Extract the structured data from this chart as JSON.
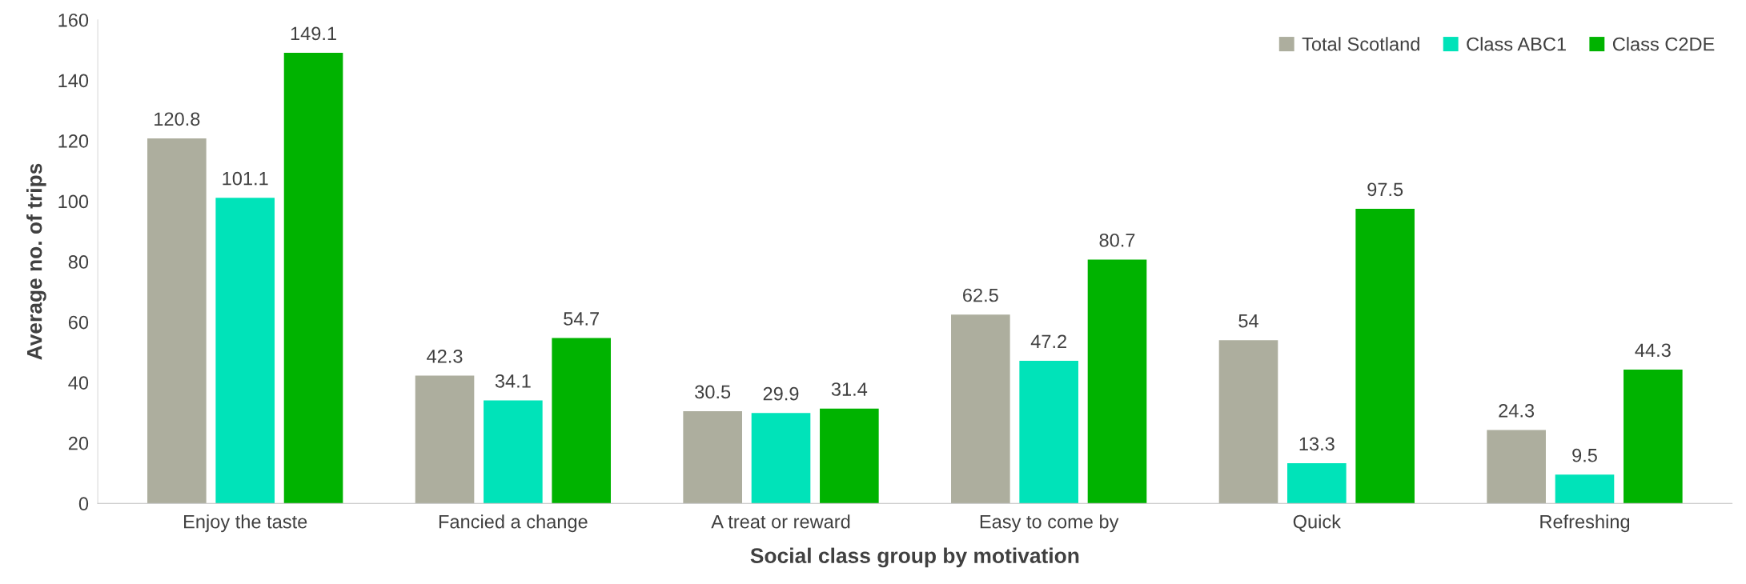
{
  "chart_data": {
    "type": "bar",
    "xlabel": "Social class group by motivation",
    "ylabel": "Average no. of trips",
    "categories": [
      "Enjoy the taste",
      "Fancied a change",
      "A treat or reward",
      "Easy to come by",
      "Quick",
      "Refreshing"
    ],
    "series": [
      {
        "name": "Total Scotland",
        "color": "#adae9e",
        "values": [
          120.8,
          42.3,
          30.5,
          62.5,
          54,
          24.3
        ]
      },
      {
        "name": "Class ABC1",
        "color": "#00e3b9",
        "values": [
          101.1,
          34.1,
          29.9,
          47.2,
          13.3,
          9.5
        ]
      },
      {
        "name": "Class C2DE",
        "color": "#00b300",
        "values": [
          149.1,
          54.7,
          31.4,
          80.7,
          97.5,
          44.3
        ]
      }
    ],
    "ylim": [
      0,
      160
    ],
    "yticks": [
      0,
      20,
      40,
      60,
      80,
      100,
      120,
      140,
      160
    ],
    "grid": false,
    "legend": "top right",
    "data_labels": true
  }
}
